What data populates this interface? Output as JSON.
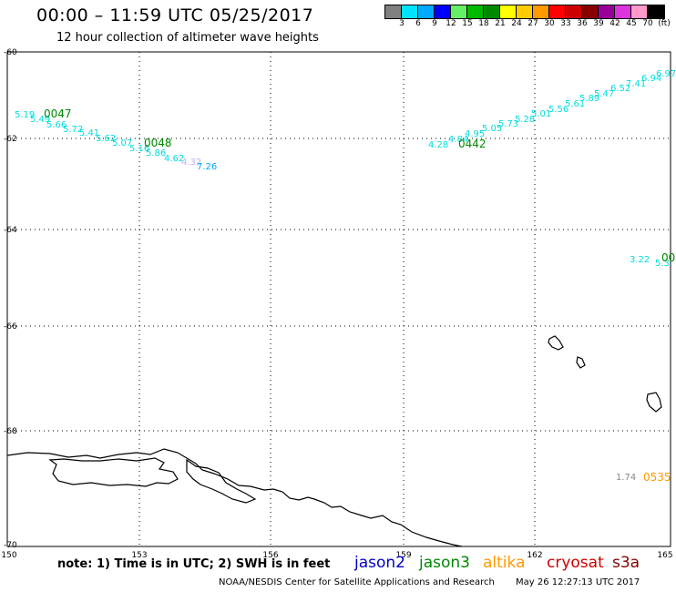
{
  "header": {
    "title": "00:00 – 11:59 UTC 05/25/2017",
    "subtitle": "12 hour collection of altimeter wave heights"
  },
  "legend": {
    "colors": [
      "#808080",
      "#00e5ff",
      "#00aaff",
      "#0000ff",
      "#66ee66",
      "#00bb00",
      "#008800",
      "#ffff00",
      "#ffcc00",
      "#ff9900",
      "#ff0000",
      "#cc0000",
      "#880000",
      "#990099",
      "#dd33dd",
      "#ff99cc",
      "#000000"
    ],
    "labels": [
      "3",
      "6",
      "9",
      "12",
      "15",
      "18",
      "21",
      "24",
      "27",
      "30",
      "33",
      "36",
      "39",
      "42",
      "45",
      "70",
      "(ft)"
    ]
  },
  "map": {
    "lat_labels": [
      "-60",
      "-62",
      "-64",
      "-66",
      "-68",
      "-70"
    ],
    "lon_labels": [
      "150",
      "153",
      "156",
      "159",
      "162",
      "165"
    ],
    "tracks": [
      {
        "time": "0047",
        "color": "#00dddd",
        "values": [
          "5.19",
          "5.49",
          "5.66",
          "5.72",
          "5.41",
          "5.62",
          "5.07",
          "5.16",
          "5.86",
          "4.62"
        ]
      },
      {
        "time": "0048",
        "color": "#00dddd",
        "values": [
          "4.32",
          "7.26"
        ]
      },
      {
        "time": "0442",
        "color": "#00dddd",
        "values": [
          "4.28",
          "4.84",
          "4.95",
          "5.05",
          "5.73",
          "5.28",
          "5.01",
          "5.56",
          "5.61",
          "5.89",
          "5.47",
          "6.52",
          "7.41",
          "6.94",
          "6.97"
        ]
      },
      {
        "time": "00",
        "color": "#00dddd",
        "values": [
          "3.22",
          "5.3"
        ]
      },
      {
        "time": "0535",
        "color": "#888888",
        "values": [
          "1.74"
        ]
      }
    ]
  },
  "footer": {
    "note": "note: 1) Time is in UTC; 2) SWH is in feet",
    "satellites": [
      {
        "name": "jason2",
        "color": "#0000cc"
      },
      {
        "name": "jason3",
        "color": "#008800"
      },
      {
        "name": "altika",
        "color": "#ff9900"
      },
      {
        "name": "cryosat",
        "color": "#cc0000"
      },
      {
        "name": "s3a",
        "color": "#880000"
      }
    ],
    "credit": "NOAA/NESDIS Center for Satellite Applications and Research",
    "timestamp": "May 26 12:27:13 UTC 2017"
  }
}
